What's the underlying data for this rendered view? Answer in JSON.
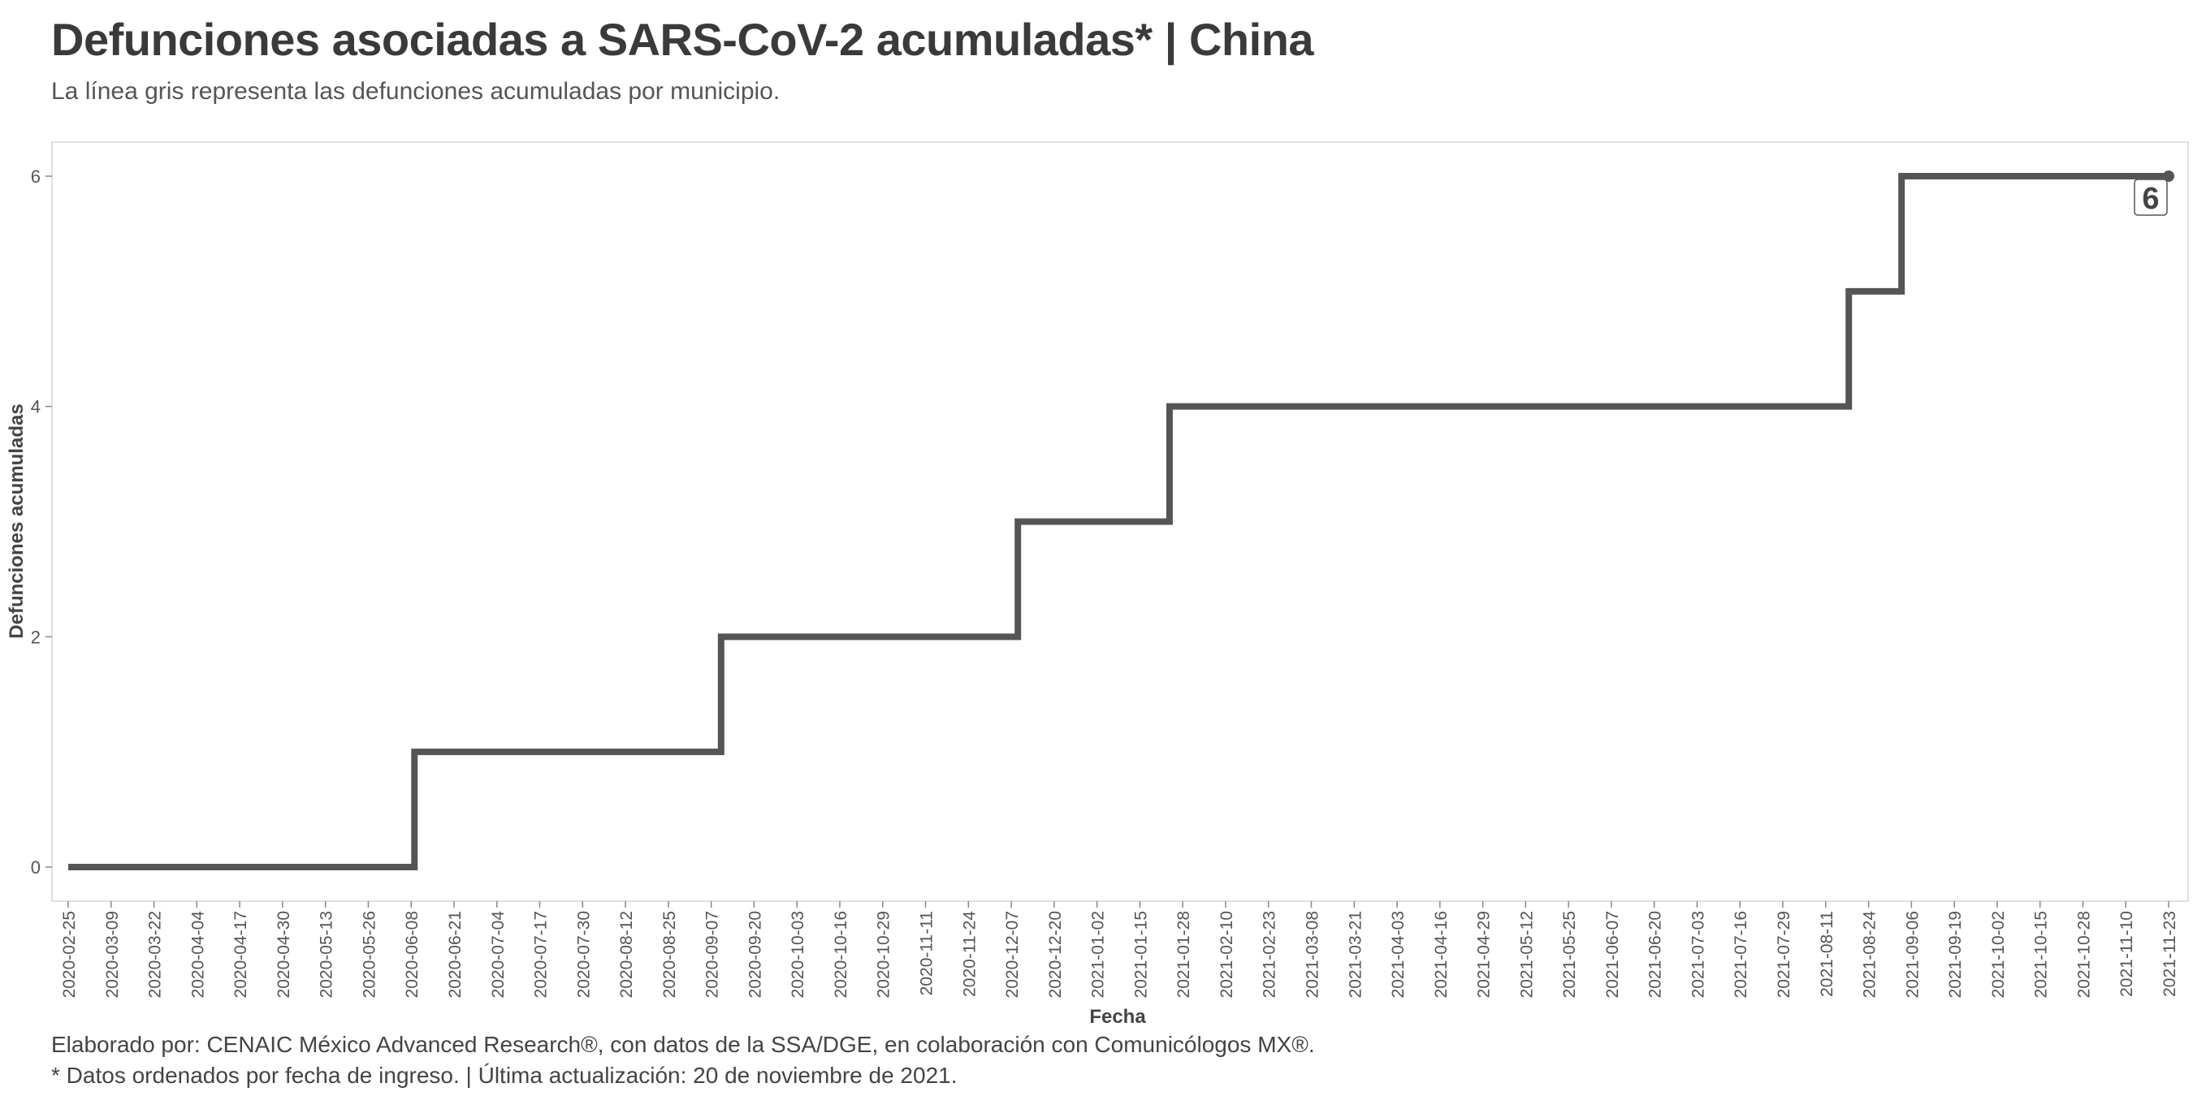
{
  "title": "Defunciones asociadas a SARS-CoV-2 acumuladas* | China",
  "subtitle": "La línea gris representa las defunciones acumuladas por municipio.",
  "caption": {
    "line1": "Elaborado por: CENAIC México Advanced Research®, con datos de la SSA/DGE, en colaboración con Comunicólogos MX®.",
    "line2": "* Datos ordenados por fecha de ingreso. | Última actualización: 20 de noviembre de 2021."
  },
  "colors": {
    "line": "#555555",
    "panel_border": "#e0e0e0",
    "text": "#444444"
  },
  "chart_data": {
    "type": "line",
    "step": true,
    "xlabel": "Fecha",
    "ylabel": "Defunciones acumuladas",
    "xlim": [
      "2020-02-25",
      "2021-11-23"
    ],
    "ylim": [
      0,
      6
    ],
    "yticks": [
      0,
      2,
      4,
      6
    ],
    "xticks": [
      "2020-02-25",
      "2020-03-09",
      "2020-03-22",
      "2020-04-04",
      "2020-04-17",
      "2020-04-30",
      "2020-05-13",
      "2020-05-26",
      "2020-06-08",
      "2020-06-21",
      "2020-07-04",
      "2020-07-17",
      "2020-07-30",
      "2020-08-12",
      "2020-08-25",
      "2020-09-07",
      "2020-09-20",
      "2020-10-03",
      "2020-10-16",
      "2020-10-29",
      "2020-11-11",
      "2020-11-24",
      "2020-12-07",
      "2020-12-20",
      "2021-01-02",
      "2021-01-15",
      "2021-01-28",
      "2021-02-10",
      "2021-02-23",
      "2021-03-08",
      "2021-03-21",
      "2021-04-03",
      "2021-04-16",
      "2021-04-29",
      "2021-05-12",
      "2021-05-25",
      "2021-06-07",
      "2021-06-20",
      "2021-07-03",
      "2021-07-16",
      "2021-07-29",
      "2021-08-11",
      "2021-08-24",
      "2021-09-06",
      "2021-09-19",
      "2021-10-02",
      "2021-10-15",
      "2021-10-28",
      "2021-11-10",
      "2021-11-23"
    ],
    "grid": false,
    "series": [
      {
        "points": [
          {
            "x": "2020-02-25",
            "y": 0
          },
          {
            "x": "2020-06-09",
            "y": 1
          },
          {
            "x": "2020-09-10",
            "y": 2
          },
          {
            "x": "2020-12-09",
            "y": 3
          },
          {
            "x": "2021-01-24",
            "y": 4
          },
          {
            "x": "2021-08-18",
            "y": 5
          },
          {
            "x": "2021-09-03",
            "y": 6
          },
          {
            "x": "2021-11-23",
            "y": 6
          }
        ]
      }
    ],
    "end_label": "6"
  }
}
